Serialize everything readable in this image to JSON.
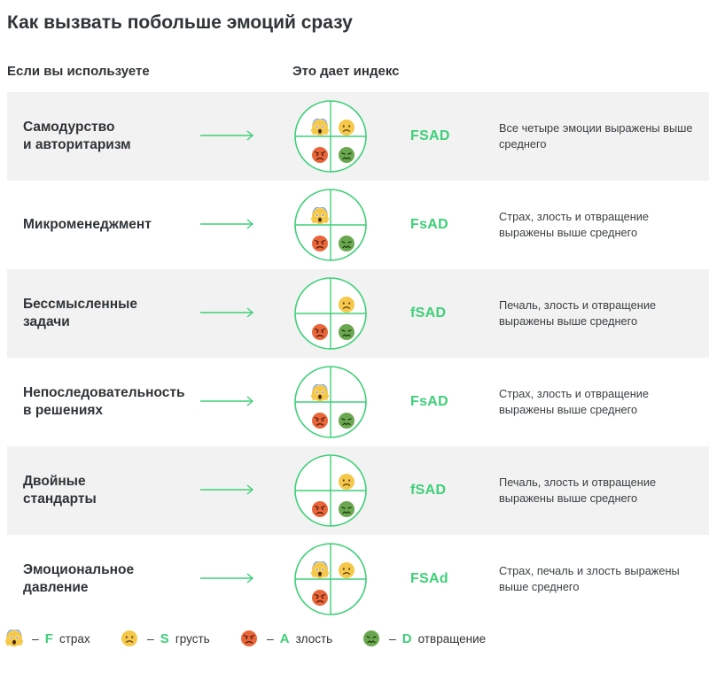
{
  "title": "Как вызвать побольше эмоций сразу",
  "columns": {
    "left_header": "Если вы используете",
    "right_header": "Это дает индекс"
  },
  "accent_color": "#3ecf78",
  "row_shade_color": "#f2f2f2",
  "emotions": {
    "F": {
      "icon": "fear-face-icon",
      "color": "#f6c84a"
    },
    "S": {
      "icon": "sad-face-icon",
      "color": "#f6c84a"
    },
    "A": {
      "icon": "angry-face-icon",
      "color": "#e8663a"
    },
    "D": {
      "icon": "disgust-face-icon",
      "color": "#6aa84f"
    }
  },
  "rows": [
    {
      "label": "Самодурство\nи авторитаризм",
      "index": "FSAD",
      "description": "Все четыре эмоции выражены выше среднего",
      "emotions": [
        "F",
        "S",
        "A",
        "D"
      ]
    },
    {
      "label": "Микроменеджмент",
      "index": "FsAD",
      "description": "Страх, злость и отвращение выражены выше среднего",
      "emotions": [
        "F",
        "A",
        "D"
      ]
    },
    {
      "label": "Бессмысленные\nзадачи",
      "index": "fSAD",
      "description": "Печаль, злость и отвращение выражены выше среднего",
      "emotions": [
        "S",
        "A",
        "D"
      ]
    },
    {
      "label": "Непоследовательность\nв решениях",
      "index": "FsAD",
      "description": "Страх, злость и отвращение выражены выше среднего",
      "emotions": [
        "F",
        "A",
        "D"
      ]
    },
    {
      "label": "Двойные\nстандарты",
      "index": "fSAD",
      "description": "Печаль, злость и отвращение выражены выше среднего",
      "emotions": [
        "S",
        "A",
        "D"
      ]
    },
    {
      "label": "Эмоциональное\nдавление",
      "index": "FSAd",
      "description": "Страх, печаль и злость выражены выше среднего",
      "emotions": [
        "F",
        "S",
        "A"
      ]
    }
  ],
  "legend": [
    {
      "emotion": "F",
      "dash": "–",
      "letter": "F",
      "word": "страх"
    },
    {
      "emotion": "S",
      "dash": "–",
      "letter": "S",
      "word": "грусть"
    },
    {
      "emotion": "A",
      "dash": "–",
      "letter": "A",
      "word": "злость"
    },
    {
      "emotion": "D",
      "dash": "–",
      "letter": "D",
      "word": "отвращение"
    }
  ]
}
